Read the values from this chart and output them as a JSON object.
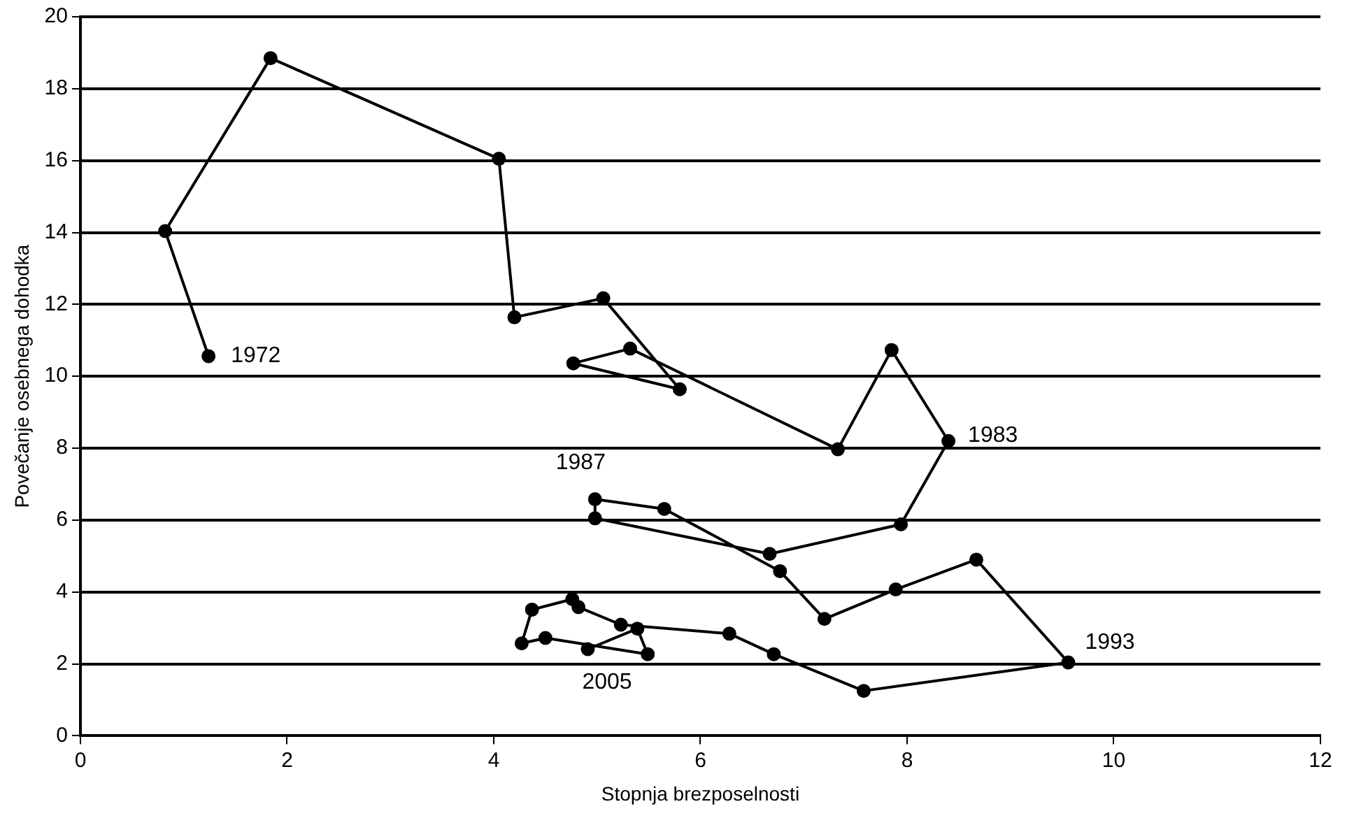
{
  "chart_data": {
    "type": "line",
    "xlabel": "Stopnja brezposelnosti",
    "ylabel": "Povečanje osebnega dohodka",
    "series": [
      {
        "color": "#000000",
        "x": [
          1.24,
          0.82,
          1.84,
          4.05,
          4.2,
          5.06,
          5.8,
          4.77,
          5.32,
          7.33,
          7.85,
          8.4,
          7.94,
          6.67,
          4.98,
          4.98,
          5.65,
          6.77,
          7.2,
          7.89,
          8.67,
          9.56,
          7.58,
          6.71,
          6.28,
          5.23,
          4.82,
          4.76,
          4.37,
          4.27,
          4.5,
          5.49,
          5.39,
          4.91
        ],
        "values": [
          10.56,
          14.04,
          18.85,
          16.05,
          11.64,
          12.17,
          9.64,
          10.36,
          10.77,
          7.97,
          10.73,
          8.2,
          5.88,
          5.06,
          6.05,
          6.58,
          6.31,
          4.58,
          3.25,
          4.07,
          4.9,
          2.04,
          1.25,
          2.27,
          2.84,
          3.09,
          3.58,
          3.8,
          3.51,
          2.57,
          2.72,
          2.27,
          2.98,
          2.41
        ]
      }
    ],
    "annotations": [
      {
        "text": "1972",
        "x": 1.24,
        "y": 10.56
      },
      {
        "text": "1983",
        "x": 8.4,
        "y": 8.2
      },
      {
        "text": "1987",
        "x": 4.98,
        "y": 6.58
      },
      {
        "text": "1993",
        "x": 9.56,
        "y": 2.04
      },
      {
        "text": "2005",
        "x": 4.91,
        "y": 2.41
      }
    ],
    "xlim": [
      0,
      12
    ],
    "xticks": [
      0,
      2,
      4,
      6,
      8,
      10,
      12
    ],
    "ylim": [
      0,
      20
    ],
    "yticks": [
      0,
      2,
      4,
      6,
      8,
      10,
      12,
      14,
      16,
      18,
      20
    ],
    "grid": "y",
    "marker": "circle",
    "line_style": "solid",
    "legend": false
  }
}
